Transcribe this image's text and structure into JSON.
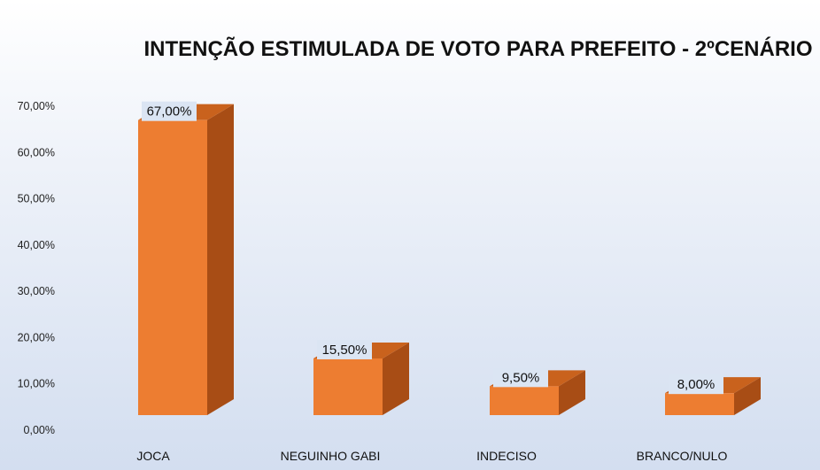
{
  "chart_data": {
    "type": "bar",
    "title": "INTENÇÃO ESTIMULADA DE VOTO PARA PREFEITO - 2ºCENÁRIO",
    "categories": [
      "JOCA",
      "NEGUINHO GABI",
      "INDECISO",
      "BRANCO/NULO"
    ],
    "values": [
      67.0,
      15.5,
      9.5,
      8.0
    ],
    "data_labels": [
      "67,00%",
      "15,50%",
      "9,50%",
      "8,00%"
    ],
    "ylim": [
      0,
      70
    ],
    "yticks": [
      0,
      10,
      20,
      30,
      40,
      50,
      60,
      70
    ],
    "ytick_labels": [
      "0,00%",
      "10,00%",
      "20,00%",
      "30,00%",
      "40,00%",
      "50,00%",
      "60,00%",
      "70,00%"
    ],
    "xlabel": "",
    "ylabel": "",
    "grid": false,
    "legend": "none",
    "style": "3d-bar",
    "colors": {
      "front": "#ed7d31",
      "side": "#a84d15",
      "top": "#c9621d",
      "label_bg": "#dbe5f3"
    }
  }
}
